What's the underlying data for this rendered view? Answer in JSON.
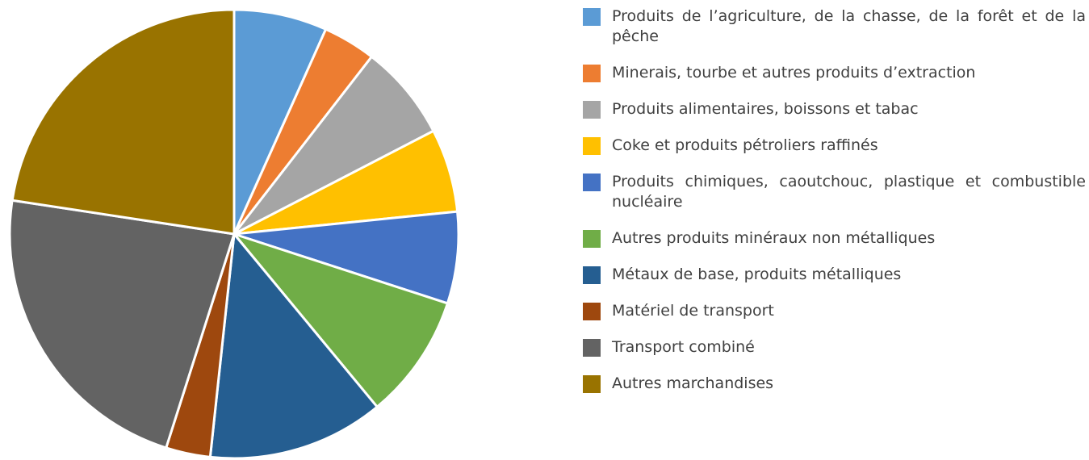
{
  "chart_data": {
    "type": "pie",
    "categories": [
      "Produits de l’agriculture, de la chasse, de la forêt et de la pêche",
      "Minerais, tourbe et autres produits d’extraction",
      "Produits alimentaires, boissons et tabac",
      "Coke et produits pétroliers raffinés",
      "Produits chimiques, caoutchouc, plastique et combustible nucléaire",
      "Autres produits minéraux non métalliques",
      "Métaux de base, produits métalliques",
      "Matériel de transport",
      "Transport combiné",
      "Autres marchandises"
    ],
    "values": [
      6.7,
      3.8,
      6.9,
      6.0,
      6.6,
      9.0,
      12.7,
      3.2,
      22.5,
      22.6
    ],
    "colors": [
      "#5b9bd5",
      "#ed7d31",
      "#a5a5a5",
      "#ffc000",
      "#4472c4",
      "#70ad47",
      "#255e91",
      "#9e480e",
      "#636363",
      "#997300"
    ],
    "legend": "right"
  }
}
